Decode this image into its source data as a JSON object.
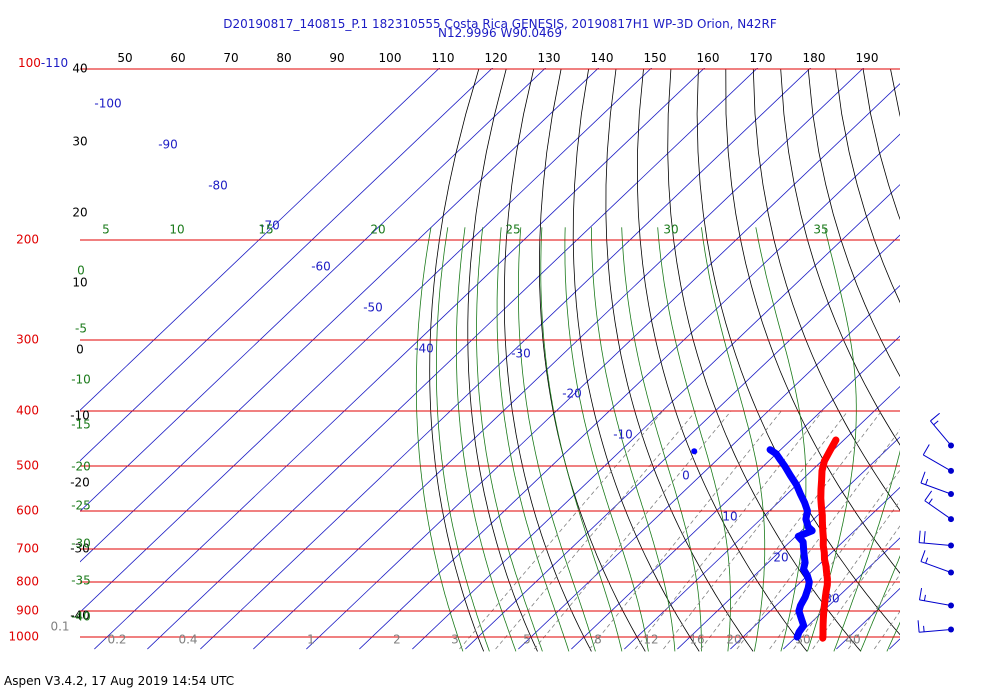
{
  "header": {
    "line1": "D20190817_140815_P.1 182310555 Costa Rica GENESIS, 20190817H1 WP-3D Orion, N42RF",
    "line2": "N12.9996 W90.0469"
  },
  "footer": {
    "text": "Aspen V3.4.2, 17 Aug 2019  14:54 UTC"
  },
  "chart_data": {
    "type": "line",
    "title": "D20190817_140815_P.1 182310555 Costa Rica GENESIS, 20190817H1 WP-3D Orion, N42RF",
    "subtitle": "N12.9996 W90.0469",
    "pressure_labels": [
      "100-110",
      "200",
      "300",
      "400",
      "500",
      "600",
      "700",
      "800",
      "900",
      "1000"
    ],
    "top_temperature_labels": [
      "50",
      "60",
      "70",
      "80",
      "90",
      "100",
      "110",
      "120",
      "130",
      "140",
      "150",
      "160",
      "170",
      "180",
      "190"
    ],
    "left_black_labels": [
      "40",
      "30",
      "20",
      "10",
      "0",
      "-10",
      "-20",
      "-30",
      "-40"
    ],
    "diagonal_blue_labels": [
      "-100",
      "-90",
      "-80",
      "-70",
      "-60",
      "-50",
      "-40",
      "-30",
      "-20",
      "-10",
      "0",
      "10",
      "20",
      "30"
    ],
    "green_top_labels": [
      "5",
      "10",
      "15",
      "20",
      "25",
      "30",
      "35"
    ],
    "green_left_labels": [
      "0",
      "-5",
      "-10",
      "-15",
      "-20",
      "-25",
      "-30",
      "-35",
      "-40"
    ],
    "mixing_ratio_labels": [
      "0.1",
      "0.2",
      "0.4",
      "1",
      "2",
      "3",
      "5",
      "8",
      "12",
      "16",
      "20",
      "30",
      "40"
    ],
    "series": [
      {
        "name": "Temperature",
        "color": "#ff0000",
        "points": [
          [
            450,
            -11.5
          ],
          [
            470,
            -10.5
          ],
          [
            490,
            -9.5
          ],
          [
            510,
            -8
          ],
          [
            530,
            -6.2
          ],
          [
            550,
            -4.5
          ],
          [
            570,
            -2.8
          ],
          [
            590,
            -1
          ],
          [
            610,
            0.8
          ],
          [
            630,
            2.4
          ],
          [
            650,
            4
          ],
          [
            670,
            5.6
          ],
          [
            690,
            7
          ],
          [
            710,
            8.6
          ],
          [
            730,
            10
          ],
          [
            750,
            11.6
          ],
          [
            770,
            13
          ],
          [
            790,
            14.4
          ],
          [
            810,
            15.6
          ],
          [
            830,
            16.6
          ],
          [
            850,
            17.6
          ],
          [
            870,
            18.6
          ],
          [
            890,
            19.6
          ],
          [
            910,
            20.6
          ],
          [
            930,
            21.6
          ],
          [
            950,
            22.6
          ],
          [
            970,
            23.6
          ],
          [
            990,
            24.6
          ],
          [
            1005,
            25.3
          ]
        ]
      },
      {
        "name": "Dewpoint",
        "color": "#0000ff",
        "points": [
          [
            468,
            -22
          ],
          [
            476,
            -20
          ],
          [
            488,
            -18
          ],
          [
            500,
            -16
          ],
          [
            520,
            -13
          ],
          [
            540,
            -10
          ],
          [
            560,
            -7.5
          ],
          [
            580,
            -5
          ],
          [
            600,
            -2.8
          ],
          [
            620,
            -1.5
          ],
          [
            640,
            0.5
          ],
          [
            650,
            2
          ],
          [
            665,
            0.5
          ],
          [
            680,
            2.5
          ],
          [
            700,
            4
          ],
          [
            720,
            5.5
          ],
          [
            740,
            7
          ],
          [
            760,
            8
          ],
          [
            780,
            10
          ],
          [
            800,
            11.6
          ],
          [
            820,
            12.6
          ],
          [
            850,
            13.8
          ],
          [
            880,
            14.6
          ],
          [
            900,
            15.4
          ],
          [
            930,
            17.5
          ],
          [
            955,
            19.2
          ],
          [
            980,
            19.6
          ],
          [
            1000,
            20.2
          ]
        ]
      }
    ],
    "isolated_point": {
      "p": 471,
      "t": -36
    },
    "wind_barbs": [
      {
        "p": 460,
        "dir_deg": 320,
        "speed_kt": 15
      },
      {
        "p": 510,
        "dir_deg": 300,
        "speed_kt": 10
      },
      {
        "p": 560,
        "dir_deg": 290,
        "speed_kt": 15
      },
      {
        "p": 620,
        "dir_deg": 305,
        "speed_kt": 15
      },
      {
        "p": 690,
        "dir_deg": 275,
        "speed_kt": 20
      },
      {
        "p": 770,
        "dir_deg": 290,
        "speed_kt": 15
      },
      {
        "p": 880,
        "dir_deg": 280,
        "speed_kt": 15
      },
      {
        "p": 970,
        "dir_deg": 265,
        "speed_kt": 15
      }
    ],
    "colors": {
      "pressure_lines": "#e00000",
      "isotherms": "#1c1cc4",
      "dry_adiabats": "#000000",
      "moist_adiabats": "#1a7a1a",
      "mixing_ratio": "#808080",
      "temperature": "#ff0000",
      "dewpoint": "#0000ff"
    }
  }
}
